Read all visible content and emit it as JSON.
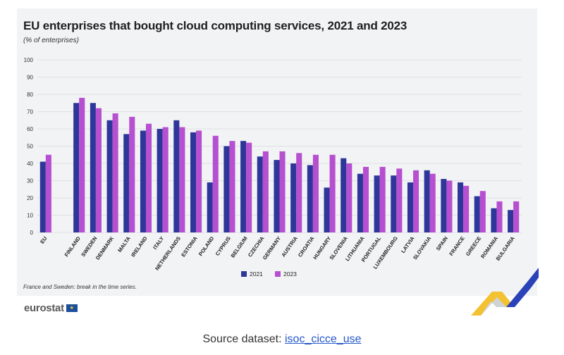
{
  "title": "EU enterprises that bought cloud computing services, 2021 and 2023",
  "subtitle": "(% of enterprises)",
  "footnote": "France and Sweden: break in the time series.",
  "logo": "eurostat",
  "source": {
    "prefix": "Source dataset: ",
    "link_text": "isoc_cicce_use"
  },
  "colors": {
    "series_2021": "#2e3799",
    "series_2023": "#b64fd0",
    "panel": "#f2f3f4",
    "grid": "#d9dadc"
  },
  "chart_data": {
    "type": "bar",
    "categories": [
      "EU",
      "FINLAND",
      "SWEDEN",
      "DENMARK",
      "MALTA",
      "IRELAND",
      "ITALY",
      "NETHERLANDS",
      "ESTONIA",
      "POLAND",
      "CYPRUS",
      "BELGIUM",
      "CZECHIA",
      "GERMANY",
      "AUSTRIA",
      "CROATIA",
      "HUNGARY",
      "SLOVENIA",
      "LITHUANIA",
      "PORTUGAL",
      "LUXEMBOURG",
      "LATVIA",
      "SLOVAKIA",
      "SPAIN",
      "FRANCE",
      "GREECE",
      "ROMANIA",
      "BULGARIA"
    ],
    "series": [
      {
        "name": "2021",
        "values": [
          41,
          75,
          75,
          65,
          57,
          59,
          60,
          65,
          58,
          29,
          50,
          53,
          44,
          42,
          40,
          39,
          26,
          43,
          34,
          33,
          33,
          29,
          36,
          31,
          29,
          21,
          14,
          13
        ]
      },
      {
        "name": "2023",
        "values": [
          45,
          78,
          72,
          69,
          67,
          63,
          61,
          61,
          59,
          56,
          53,
          52,
          47,
          47,
          46,
          45,
          45,
          40,
          38,
          38,
          37,
          36,
          34,
          30,
          27,
          24,
          18,
          18
        ]
      }
    ],
    "ylim": [
      0,
      100
    ],
    "yticks": [
      0,
      10,
      20,
      30,
      40,
      50,
      60,
      70,
      80,
      90,
      100
    ],
    "grid": true,
    "legend": "bottom-center",
    "gap_after_first": true
  }
}
